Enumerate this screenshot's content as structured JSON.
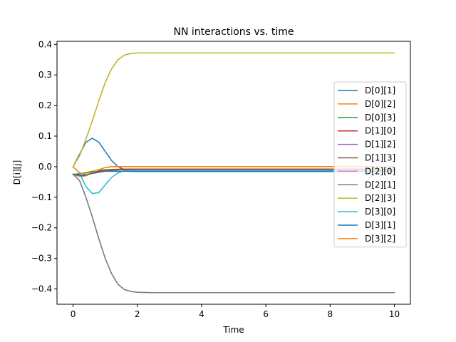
{
  "chart_data": {
    "type": "line",
    "title": "NN interactions vs. time",
    "xlabel": "Time",
    "ylabel": "D[i][j]",
    "xlim": [
      -0.5,
      10.5
    ],
    "ylim": [
      -0.45,
      0.41
    ],
    "xticks": [
      0,
      2,
      4,
      6,
      8,
      10
    ],
    "xtick_labels": [
      "0",
      "2",
      "4",
      "6",
      "8",
      "10"
    ],
    "yticks": [
      0.4,
      0.3,
      0.2,
      0.1,
      0.0,
      -0.1,
      -0.2,
      -0.3,
      -0.4
    ],
    "ytick_labels": [
      "0.4",
      "0.3",
      "0.2",
      "0.1",
      "0.0",
      "−0.1",
      "−0.2",
      "−0.3",
      "−0.4"
    ],
    "grid": false,
    "legend_position": "right",
    "series": [
      {
        "name": "D[0][1]",
        "color": "#1f77b4",
        "x": [
          0,
          0.2,
          0.4,
          0.6,
          0.8,
          1.0,
          1.2,
          1.4,
          1.6,
          2.0,
          3.0,
          5.0,
          10.0
        ],
        "y": [
          0.0,
          0.04,
          0.08,
          0.093,
          0.08,
          0.05,
          0.02,
          0.0,
          -0.01,
          -0.015,
          -0.015,
          -0.015,
          -0.015
        ]
      },
      {
        "name": "D[0][2]",
        "color": "#ff7f0e",
        "x": [
          0,
          0.2,
          0.4,
          0.6,
          0.8,
          1.0,
          1.2,
          1.5,
          2.0,
          3.0,
          10.0
        ],
        "y": [
          -0.025,
          -0.032,
          -0.03,
          -0.02,
          -0.01,
          -0.003,
          0.0,
          0.0,
          0.0,
          0.0,
          0.0
        ]
      },
      {
        "name": "D[0][3]",
        "color": "#2ca02c",
        "x": [
          0,
          0.3,
          0.6,
          1.0,
          1.5,
          2.0,
          10.0
        ],
        "y": [
          -0.025,
          -0.022,
          -0.015,
          -0.01,
          -0.008,
          -0.008,
          -0.008
        ]
      },
      {
        "name": "D[1][0]",
        "color": "#d62728",
        "x": [
          0,
          0.3,
          0.6,
          1.0,
          1.5,
          2.0,
          10.0
        ],
        "y": [
          -0.025,
          -0.028,
          -0.02,
          -0.012,
          -0.008,
          -0.008,
          -0.008
        ]
      },
      {
        "name": "D[1][2]",
        "color": "#9467bd",
        "x": [
          0,
          0.2,
          0.4,
          0.6,
          0.8,
          1.0,
          1.2,
          1.4,
          1.6,
          1.8,
          2.0,
          2.5,
          3.0,
          10.0
        ],
        "y": [
          -0.025,
          -0.045,
          -0.1,
          -0.165,
          -0.235,
          -0.3,
          -0.35,
          -0.385,
          -0.402,
          -0.408,
          -0.411,
          -0.412,
          -0.412,
          -0.412
        ]
      },
      {
        "name": "D[1][3]",
        "color": "#8c564b",
        "x": [
          0,
          0.3,
          0.6,
          1.0,
          1.5,
          2.0,
          10.0
        ],
        "y": [
          -0.025,
          -0.03,
          -0.022,
          -0.014,
          -0.01,
          -0.01,
          -0.01
        ]
      },
      {
        "name": "D[2][0]",
        "color": "#e377c2",
        "x": [
          0,
          0.2,
          0.4,
          0.6,
          0.8,
          1.0,
          1.2,
          1.4,
          1.6,
          1.8,
          2.0,
          2.5,
          3.0,
          10.0
        ],
        "y": [
          0.0,
          0.035,
          0.09,
          0.15,
          0.215,
          0.275,
          0.32,
          0.35,
          0.365,
          0.37,
          0.372,
          0.372,
          0.372,
          0.372
        ]
      },
      {
        "name": "D[2][1]",
        "color": "#7f7f7f",
        "x": [
          0,
          0.2,
          0.4,
          0.6,
          0.8,
          1.0,
          1.2,
          1.4,
          1.6,
          1.8,
          2.0,
          2.5,
          3.0,
          10.0
        ],
        "y": [
          -0.025,
          -0.045,
          -0.1,
          -0.165,
          -0.235,
          -0.3,
          -0.35,
          -0.385,
          -0.402,
          -0.408,
          -0.411,
          -0.412,
          -0.412,
          -0.412
        ]
      },
      {
        "name": "D[2][3]",
        "color": "#bcbd22",
        "x": [
          0,
          0.2,
          0.4,
          0.6,
          0.8,
          1.0,
          1.2,
          1.4,
          1.6,
          1.8,
          2.0,
          2.5,
          3.0,
          10.0
        ],
        "y": [
          0.0,
          0.035,
          0.09,
          0.15,
          0.215,
          0.275,
          0.32,
          0.35,
          0.365,
          0.37,
          0.372,
          0.372,
          0.372,
          0.372
        ]
      },
      {
        "name": "D[3][0]",
        "color": "#17becf",
        "x": [
          0,
          0.2,
          0.4,
          0.6,
          0.8,
          1.0,
          1.2,
          1.4,
          1.6,
          1.8,
          2.0,
          2.5,
          3.0,
          10.0
        ],
        "y": [
          0.0,
          -0.02,
          -0.065,
          -0.088,
          -0.085,
          -0.06,
          -0.035,
          -0.02,
          -0.013,
          -0.012,
          -0.012,
          -0.012,
          -0.012,
          -0.012
        ]
      },
      {
        "name": "D[3][1]",
        "color": "#1f77b4",
        "x": [
          0,
          0.3,
          0.6,
          1.0,
          1.5,
          2.0,
          3.0,
          10.0
        ],
        "y": [
          -0.025,
          -0.03,
          -0.022,
          -0.015,
          -0.015,
          -0.016,
          -0.016,
          -0.016
        ]
      },
      {
        "name": "D[3][2]",
        "color": "#ff7f0e",
        "x": [
          0,
          0.2,
          0.4,
          0.6,
          0.8,
          1.0,
          1.2,
          1.5,
          2.0,
          3.0,
          10.0
        ],
        "y": [
          0.0,
          -0.02,
          -0.025,
          -0.018,
          -0.01,
          -0.003,
          0.0,
          0.0,
          0.0,
          0.0,
          0.0
        ]
      }
    ]
  }
}
